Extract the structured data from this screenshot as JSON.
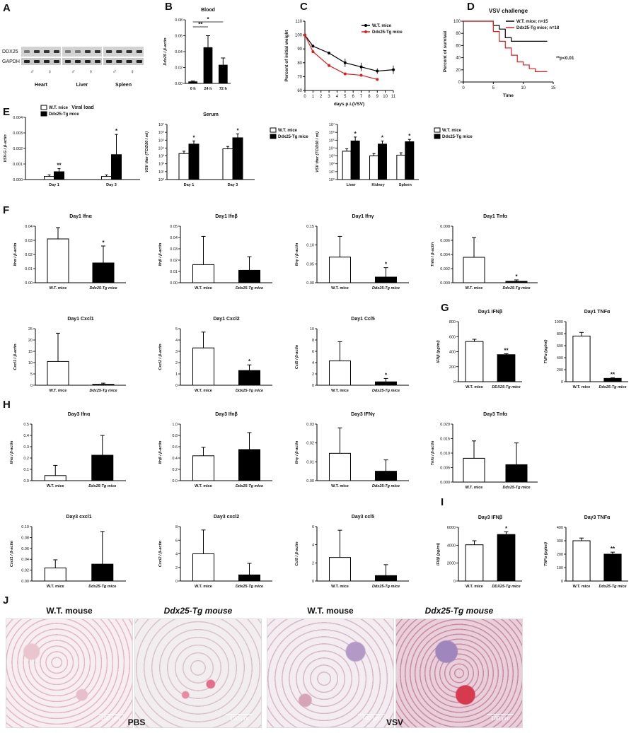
{
  "blot": {
    "labels": [
      "DDX25",
      "GAPDH"
    ],
    "sex_marks": [
      "♂",
      "♀",
      "♂",
      "♀",
      "♂",
      "♀"
    ],
    "tissues": [
      "Heart",
      "Liver",
      "Spleen"
    ]
  },
  "panel_letters": [
    "A",
    "B",
    "C",
    "D",
    "E",
    "F",
    "G",
    "H",
    "I",
    "J"
  ],
  "chart_data": [
    {
      "id": "B",
      "type": "bar",
      "title": "Blood",
      "ylabel": "Ddx25 / β-actin",
      "categories": [
        "0 h",
        "24 h",
        "72 h"
      ],
      "values": [
        0.002,
        0.045,
        0.023
      ],
      "errors": [
        0.001,
        0.015,
        0.009
      ],
      "ylim": [
        0,
        0.08
      ],
      "yticks": [
        "0.00",
        "0.02",
        "0.04",
        "0.06",
        "0.08"
      ],
      "significance": [
        {
          "from": 0,
          "to": 1,
          "label": "**"
        },
        {
          "from": 0,
          "to": 2,
          "label": "*"
        }
      ]
    },
    {
      "id": "C",
      "type": "line",
      "xlabel": "days p.i.(VSV)",
      "ylabel": "Percent of initial weight",
      "xlim": [
        0,
        11
      ],
      "ylim": [
        60,
        110
      ],
      "xticks": [
        "0",
        "1",
        "2",
        "3",
        "4",
        "5",
        "6",
        "7",
        "8",
        "9",
        "10",
        "11"
      ],
      "yticks": [
        "60",
        "70",
        "80",
        "90",
        "100",
        "110"
      ],
      "series": [
        {
          "name": "W.T. mice",
          "color": "#000000",
          "x": [
            0,
            1,
            3,
            5,
            7,
            9,
            11
          ],
          "y": [
            100,
            92,
            87,
            80,
            77,
            74,
            75
          ],
          "err": [
            0,
            1,
            1,
            3,
            3,
            2,
            3
          ]
        },
        {
          "name": "Ddx25-Tg mice",
          "color": "#e41a1c",
          "x": [
            0,
            1,
            3,
            5,
            7,
            9
          ],
          "y": [
            100,
            88,
            78,
            72,
            71,
            68
          ],
          "err": [
            0,
            1,
            1,
            1,
            1,
            1
          ]
        }
      ]
    },
    {
      "id": "D",
      "type": "line",
      "title": "VSV challenge",
      "xlabel": "Time",
      "ylabel": "Percent of survival",
      "xlim": [
        0,
        15
      ],
      "ylim": [
        0,
        100
      ],
      "xticks": [
        "0",
        "5",
        "10",
        "15"
      ],
      "yticks": [
        "0",
        "20",
        "40",
        "60",
        "80",
        "100"
      ],
      "annotation": "**p<0.01",
      "series": [
        {
          "name": "W.T. mice; n=15",
          "color": "#000000",
          "x": [
            0,
            4,
            5,
            6,
            7,
            8,
            14
          ],
          "y": [
            100,
            100,
            93,
            87,
            73,
            67,
            67
          ]
        },
        {
          "name": "Ddx25-Tg mice; n=18",
          "color": "#e41a1c",
          "x": [
            0,
            4,
            5,
            6,
            7,
            8,
            9,
            10,
            11,
            12,
            14
          ],
          "y": [
            100,
            100,
            83,
            67,
            56,
            44,
            33,
            28,
            22,
            17,
            17
          ]
        }
      ]
    },
    {
      "id": "E1",
      "type": "bar",
      "title": "Viral load",
      "ylabel": "VSV-G / β-actin",
      "categories": [
        "Day 1",
        "Day 3"
      ],
      "ylim": [
        0,
        0.004
      ],
      "yticks": [
        "0.000",
        "0.001",
        "0.002",
        "0.003",
        "0.004"
      ],
      "series": [
        {
          "name": "W.T. mice",
          "fill": "white",
          "values": [
            0.0002,
            0.0002
          ],
          "errors": [
            0.0001,
            0.0001
          ]
        },
        {
          "name": "Ddx25-Tg mice",
          "fill": "black",
          "values": [
            0.0005,
            0.0016
          ],
          "errors": [
            0.0002,
            0.0013
          ]
        }
      ],
      "stars": [
        "**",
        "*"
      ]
    },
    {
      "id": "E2",
      "type": "bar",
      "title": "Serum",
      "ylabel": "VSV titer (TCID50 / ml)",
      "categories": [
        "Day 1",
        "Day 3"
      ],
      "log": true,
      "ylim": [
        0,
        7
      ],
      "yticks": [
        "10⁰",
        "10¹",
        "10²",
        "10³",
        "10⁴",
        "10⁵",
        "10⁶",
        "10⁷"
      ],
      "series": [
        {
          "name": "W.T. mice",
          "fill": "white",
          "values": [
            3.3,
            3.9
          ],
          "errors": [
            0.3,
            0.3
          ]
        },
        {
          "name": "Ddx25-Tg mice",
          "fill": "black",
          "values": [
            4.5,
            5.3
          ],
          "errors": [
            0.4,
            0.5
          ]
        }
      ],
      "stars": [
        "*",
        "*"
      ]
    },
    {
      "id": "E3",
      "type": "bar",
      "ylabel": "VSV titer (TCID50 / ml)",
      "categories": [
        "Liver",
        "Kidney",
        "Spleen"
      ],
      "log": true,
      "ylim": [
        0,
        7
      ],
      "yticks": [
        "10⁰",
        "10¹",
        "10²",
        "10³",
        "10⁴",
        "10⁵",
        "10⁶",
        "10⁷"
      ],
      "series": [
        {
          "name": "W.T. mice",
          "fill": "white",
          "values": [
            3.6,
            3.0,
            3.1
          ],
          "errors": [
            0.3,
            0.3,
            0.3
          ]
        },
        {
          "name": "Ddx25-Tg mice",
          "fill": "black",
          "values": [
            4.9,
            4.5,
            4.8
          ],
          "errors": [
            0.5,
            0.4,
            0.3
          ]
        }
      ],
      "stars": [
        "*",
        "*",
        "*"
      ]
    },
    {
      "id": "F1",
      "type": "bar",
      "title": "Day1 Ifnα",
      "ylabel": "Ifnα / β-actin",
      "categories": [
        "W.T. mice",
        "Ddx25-Tg mice"
      ],
      "values": [
        0.031,
        0.014
      ],
      "errors": [
        0.008,
        0.012
      ],
      "ylim": [
        0,
        0.04
      ],
      "yticks": [
        "0.00",
        "0.01",
        "0.02",
        "0.03",
        "0.04"
      ],
      "stars": [
        "",
        "*"
      ]
    },
    {
      "id": "F2",
      "type": "bar",
      "title": "Day1 Ifnβ",
      "ylabel": "Ifnβ / β-actin",
      "categories": [
        "W.T. mice",
        "Ddx25-Tg mice"
      ],
      "values": [
        0.016,
        0.011
      ],
      "errors": [
        0.025,
        0.012
      ],
      "ylim": [
        0,
        0.05
      ],
      "yticks": [
        "0.00",
        "0.01",
        "0.02",
        "0.03",
        "0.04",
        "0.05"
      ],
      "stars": [
        "",
        ""
      ]
    },
    {
      "id": "F3",
      "type": "bar",
      "title": "Day1 Ifnγ",
      "ylabel": "Ifnγ / β-actin",
      "categories": [
        "W.T. mice",
        "Ddx25-Tg mice"
      ],
      "values": [
        0.068,
        0.015
      ],
      "errors": [
        0.055,
        0.025
      ],
      "ylim": [
        0,
        0.15
      ],
      "yticks": [
        "0.00",
        "0.05",
        "0.10",
        "0.15"
      ],
      "stars": [
        "",
        "*"
      ]
    },
    {
      "id": "F4",
      "type": "bar",
      "title": "Day1 Tnfα",
      "ylabel": "Tnfα / β-actin",
      "categories": [
        "W.T. mice",
        "Ddx25-Tg mice"
      ],
      "values": [
        0.0036,
        0.0002
      ],
      "errors": [
        0.0028,
        0.0002
      ],
      "ylim": [
        0,
        0.008
      ],
      "yticks": [
        "0.000",
        "0.002",
        "0.004",
        "0.006",
        "0.008"
      ],
      "stars": [
        "",
        "*"
      ]
    },
    {
      "id": "F5",
      "type": "bar",
      "title": "Day1 Cxcl1",
      "ylabel": "Cxcl1 / β-actin",
      "categories": [
        "W.T. mice",
        "Ddx25-Tg mice"
      ],
      "values": [
        10.5,
        0.4
      ],
      "errors": [
        12.5,
        0.5
      ],
      "ylim": [
        0,
        25
      ],
      "yticks": [
        "0",
        "5",
        "10",
        "15",
        "20",
        "25"
      ],
      "stars": [
        "",
        ""
      ]
    },
    {
      "id": "F6",
      "type": "bar",
      "title": "Day1 Cxcl2",
      "ylabel": "Cxcl2 / β-actin",
      "categories": [
        "W.T. mice",
        "Ddx25-Tg mice"
      ],
      "values": [
        3.3,
        1.3
      ],
      "errors": [
        1.4,
        0.5
      ],
      "ylim": [
        0,
        5
      ],
      "yticks": [
        "0",
        "1",
        "2",
        "3",
        "4",
        "5"
      ],
      "stars": [
        "",
        "*"
      ]
    },
    {
      "id": "F7",
      "type": "bar",
      "title": "Day1 Ccl5",
      "ylabel": "Ccl5 / β-actin",
      "categories": [
        "W.T. mice",
        "Ddx25-Tg mice"
      ],
      "values": [
        4.3,
        0.6
      ],
      "errors": [
        3.4,
        0.6
      ],
      "ylim": [
        0,
        10
      ],
      "yticks": [
        "0",
        "2",
        "4",
        "6",
        "8",
        "10"
      ],
      "stars": [
        "",
        "*"
      ]
    },
    {
      "id": "G1",
      "type": "bar",
      "title": "Day1 IFNβ",
      "ylabel": "IFNβ (pg/ml)",
      "categories": [
        "W.T. mice",
        "DDX25-Tg mice"
      ],
      "values": [
        535,
        360
      ],
      "errors": [
        30,
        12
      ],
      "ylim": [
        0,
        800
      ],
      "yticks": [
        "0",
        "200",
        "400",
        "600",
        "800"
      ],
      "stars": [
        "",
        "**"
      ]
    },
    {
      "id": "G2",
      "type": "bar",
      "title": "Day1 TNFα",
      "ylabel": "TNFα (pg/ml)",
      "categories": [
        "W.T. mice",
        "Ddx25-Tg mice"
      ],
      "values": [
        760,
        55
      ],
      "errors": [
        60,
        10
      ],
      "ylim": [
        0,
        1000
      ],
      "yticks": [
        "0",
        "200",
        "400",
        "600",
        "800",
        "1000"
      ],
      "stars": [
        "",
        "**"
      ]
    },
    {
      "id": "H1",
      "type": "bar",
      "title": "Day3 Ifnα",
      "ylabel": "Ifnα / β-actin",
      "categories": [
        "W.T. mice",
        "Ddx25-Tg mice"
      ],
      "values": [
        0.045,
        0.225
      ],
      "errors": [
        0.09,
        0.175
      ],
      "ylim": [
        0,
        0.5
      ],
      "yticks": [
        "0.0",
        "0.1",
        "0.2",
        "0.3",
        "0.4",
        "0.5"
      ],
      "stars": [
        "",
        ""
      ]
    },
    {
      "id": "H2",
      "type": "bar",
      "title": "Day3 Ifnβ",
      "ylabel": "Ifnβ / β-actin",
      "categories": [
        "W.T. mice",
        "Ddx25-Tg mice"
      ],
      "values": [
        0.44,
        0.55
      ],
      "errors": [
        0.15,
        0.3
      ],
      "ylim": [
        0,
        1.0
      ],
      "yticks": [
        "0.0",
        "0.2",
        "0.4",
        "0.6",
        "0.8",
        "1.0"
      ],
      "stars": [
        "",
        ""
      ]
    },
    {
      "id": "H3",
      "type": "bar",
      "title": "Day3 IFNγ",
      "ylabel": "Ifnγ / β-actin",
      "categories": [
        "W.T. mice",
        "Ddx25-Tg mice"
      ],
      "values": [
        0.0145,
        0.005
      ],
      "errors": [
        0.0135,
        0.006
      ],
      "ylim": [
        0,
        0.03
      ],
      "yticks": [
        "0.00",
        "0.01",
        "0.02",
        "0.03"
      ],
      "stars": [
        "",
        ""
      ]
    },
    {
      "id": "H4",
      "type": "bar",
      "title": "Day3 Tnfα",
      "ylabel": "Tnfα / β-actin",
      "categories": [
        "W.T. mice",
        "Ddx25-Tg mice"
      ],
      "values": [
        0.0082,
        0.006
      ],
      "errors": [
        0.006,
        0.0075
      ],
      "ylim": [
        0,
        0.02
      ],
      "yticks": [
        "0.000",
        "0.005",
        "0.010",
        "0.015",
        "0.020"
      ],
      "stars": [
        "",
        ""
      ]
    },
    {
      "id": "H5",
      "type": "bar",
      "title": "Day3 cxcl1",
      "ylabel": "Cxcl1 / β-actin",
      "categories": [
        "W.T. mice",
        "Ddx25-Tg mice"
      ],
      "values": [
        0.024,
        0.031
      ],
      "errors": [
        0.015,
        0.06
      ],
      "ylim": [
        0,
        0.1
      ],
      "yticks": [
        "0.00",
        "0.02",
        "0.04",
        "0.06",
        "0.08",
        "0.10"
      ],
      "stars": [
        "",
        ""
      ]
    },
    {
      "id": "H6",
      "type": "bar",
      "title": "Day3 cxcl2",
      "ylabel": "Cxcl2 / β-actin",
      "categories": [
        "W.T. mice",
        "Ddx25-Tg mice"
      ],
      "values": [
        4.0,
        0.9
      ],
      "errors": [
        3.5,
        1.7
      ],
      "ylim": [
        0,
        8
      ],
      "yticks": [
        "0",
        "2",
        "4",
        "6",
        "8"
      ],
      "stars": [
        "",
        ""
      ]
    },
    {
      "id": "H7",
      "type": "bar",
      "title": "Day3 ccl5",
      "ylabel": "Ccl5 / β-actin",
      "categories": [
        "W.T. mice",
        "Ddx25-Tg mice"
      ],
      "values": [
        2.6,
        0.6
      ],
      "errors": [
        3.0,
        1.2
      ],
      "ylim": [
        0,
        6
      ],
      "yticks": [
        "0",
        "2",
        "4",
        "6"
      ],
      "stars": [
        "",
        ""
      ]
    },
    {
      "id": "I1",
      "type": "bar",
      "title": "Day3 IFNβ",
      "ylabel": "IFNβ (pg/ml)",
      "categories": [
        "W.T. mice",
        "DDX25-Tg mice"
      ],
      "values": [
        4050,
        5200
      ],
      "errors": [
        450,
        300
      ],
      "ylim": [
        0,
        6000
      ],
      "yticks": [
        "0",
        "2000",
        "4000",
        "6000"
      ],
      "stars": [
        "",
        "*"
      ]
    },
    {
      "id": "I2",
      "type": "bar",
      "title": "Day3 TNFα",
      "ylabel": "TNFα (pg/ml)",
      "categories": [
        "W.T. mice",
        "Ddx25-Tg mice"
      ],
      "values": [
        300,
        200
      ],
      "errors": [
        20,
        15
      ],
      "ylim": [
        0,
        400
      ],
      "yticks": [
        "0",
        "100",
        "200",
        "300",
        "400"
      ],
      "stars": [
        "",
        "**"
      ]
    }
  ],
  "histology": {
    "headers": [
      "W.T. mouse",
      "Ddx25-Tg mouse",
      "W.T. mouse",
      "Ddx25-Tg mouse"
    ],
    "scale_label": "100 μm",
    "group_labels": [
      "PBS",
      "VSV"
    ]
  }
}
